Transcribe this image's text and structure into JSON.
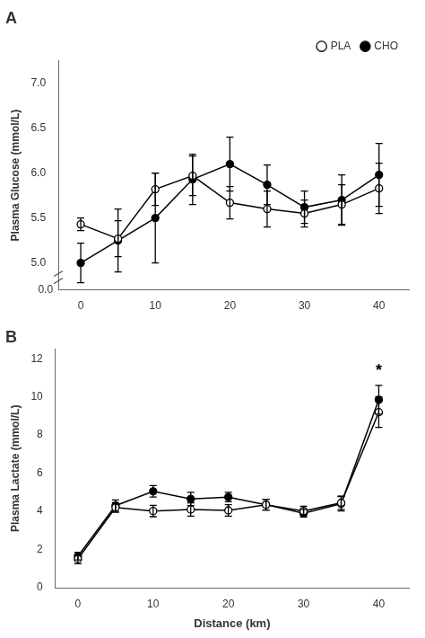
{
  "chart_data": [
    {
      "type": "line",
      "title": "A",
      "x": [
        0,
        5,
        10,
        15,
        20,
        25,
        30,
        35,
        40
      ],
      "series": [
        {
          "name": "PLA",
          "color": "#000000",
          "marker": "open_circle",
          "line_style": "solid",
          "values": [
            5.43,
            5.27,
            5.82,
            5.97,
            5.67,
            5.6,
            5.55,
            5.65,
            5.83
          ],
          "errors": [
            0.07,
            0.2,
            0.18,
            0.22,
            0.18,
            0.2,
            0.15,
            0.22,
            0.28
          ]
        },
        {
          "name": "CHO",
          "color": "#000000",
          "marker": "filled_circle",
          "line_style": "solid",
          "values": [
            5.0,
            5.25,
            5.5,
            5.93,
            6.1,
            5.87,
            5.62,
            5.7,
            5.98
          ],
          "errors": [
            0.22,
            0.35,
            0.5,
            0.28,
            0.3,
            0.22,
            0.18,
            0.28,
            0.35
          ]
        }
      ],
      "y_label": "Plasma Glucose (mmol/L)",
      "xlim": [
        -3,
        44
      ],
      "xticks": [
        0,
        10,
        20,
        30,
        40
      ],
      "ylim": [
        4.7,
        7.25
      ],
      "yticks": [
        {
          "value": 5.0,
          "label": "5.0"
        },
        {
          "value": 5.5,
          "label": "5.5"
        },
        {
          "value": 6.0,
          "label": "6.0"
        },
        {
          "value": 6.5,
          "label": "6.5"
        },
        {
          "value": 7.0,
          "label": "7.0"
        }
      ],
      "annotations": [
        {
          "text": "0.0"
        }
      ],
      "legend": "upper right",
      "grid": false
    },
    {
      "type": "line",
      "title": "B",
      "x": [
        0,
        5,
        10,
        15,
        20,
        25,
        30,
        35,
        40
      ],
      "series": [
        {
          "name": "PLA",
          "color": "#000000",
          "marker": "open_circle",
          "line_style": "solid",
          "values": [
            1.5,
            4.2,
            4.02,
            4.1,
            4.05,
            4.35,
            4.02,
            4.45,
            9.2
          ],
          "errors": [
            0.25,
            0.25,
            0.3,
            0.35,
            0.3,
            0.28,
            0.25,
            0.35,
            0.8
          ]
        },
        {
          "name": "CHO",
          "color": "#000000",
          "marker": "filled_circle",
          "line_style": "solid",
          "values": [
            1.65,
            4.3,
            5.05,
            4.65,
            4.75,
            4.35,
            3.9,
            4.4,
            9.85
          ],
          "errors": [
            0.2,
            0.3,
            0.3,
            0.35,
            0.25,
            0.28,
            0.2,
            0.38,
            0.75
          ]
        }
      ],
      "x_label": "Distance (km)",
      "y_label": "Plasma Lactate (mmol/L)",
      "xlim": [
        -3,
        44
      ],
      "xticks": [
        0,
        10,
        20,
        30,
        40
      ],
      "ylim": [
        0,
        12.5
      ],
      "yticks": [
        0,
        2,
        4,
        6,
        8,
        10,
        12
      ],
      "annotations": [
        {
          "text": "*",
          "x": 40,
          "y": 11.2
        }
      ],
      "legend": false,
      "grid": false
    }
  ]
}
